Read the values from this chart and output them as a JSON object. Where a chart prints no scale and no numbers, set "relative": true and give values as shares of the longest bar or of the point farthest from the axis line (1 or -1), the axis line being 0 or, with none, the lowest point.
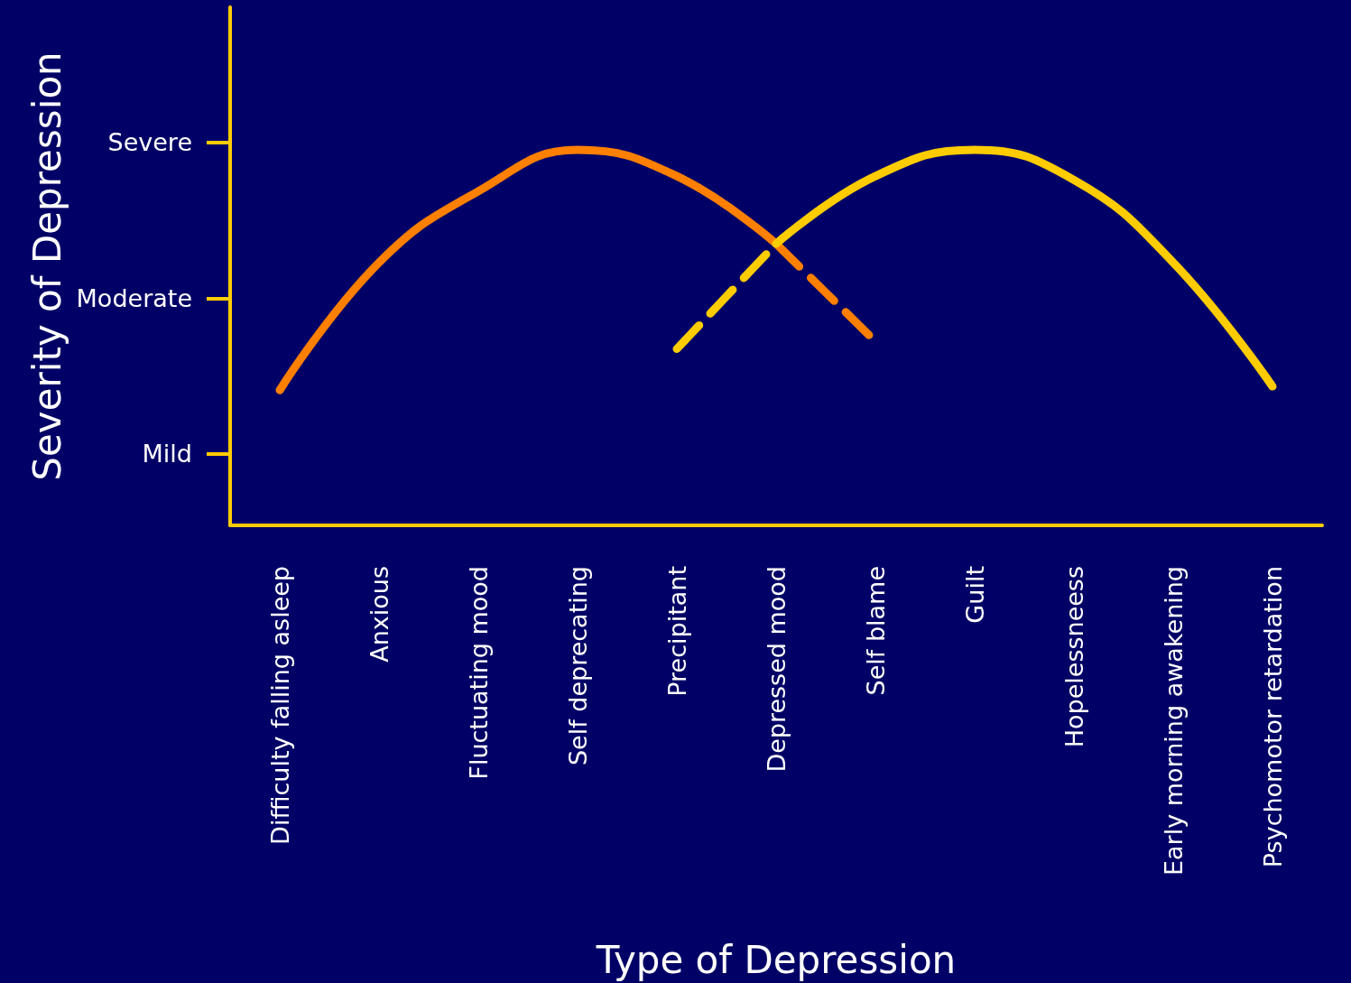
{
  "chart_data": {
    "type": "line",
    "xlabel": "Type of Depression",
    "ylabel": "Severity of Depression",
    "relative": true,
    "categories": [
      "Difficulty falling asleep",
      "Anxious",
      "Fluctuating mood",
      "Self deprecating",
      "Precipitant",
      "Depressed mood",
      "Self blame",
      "Guilt",
      "Hopelessneess",
      "Early morning awakening",
      "Psychomotor retardation"
    ],
    "series": [
      {
        "color": "#ff7f00",
        "line_style": "solid",
        "values": [
          0.36,
          0.7,
          0.89,
          1,
          0.93,
          0.75,
          null,
          null,
          null,
          null,
          null
        ]
      },
      {
        "color": "#ff7f00",
        "line_style": "dashed",
        "values": [
          null,
          null,
          null,
          null,
          null,
          0.75,
          0.49,
          null,
          null,
          null,
          null
        ]
      },
      {
        "color": "#ffcc00",
        "line_style": "dashed",
        "values": [
          null,
          null,
          null,
          null,
          0.47,
          0.75,
          null,
          null,
          null,
          null,
          null
        ]
      },
      {
        "color": "#ffcc00",
        "line_style": "solid",
        "values": [
          null,
          null,
          null,
          null,
          null,
          0.75,
          0.93,
          1,
          0.92,
          0.7,
          0.37
        ]
      }
    ],
    "annotations": [
      "Mild",
      "Moderate",
      "Severe"
    ],
    "grid": false,
    "marker": "none"
  }
}
